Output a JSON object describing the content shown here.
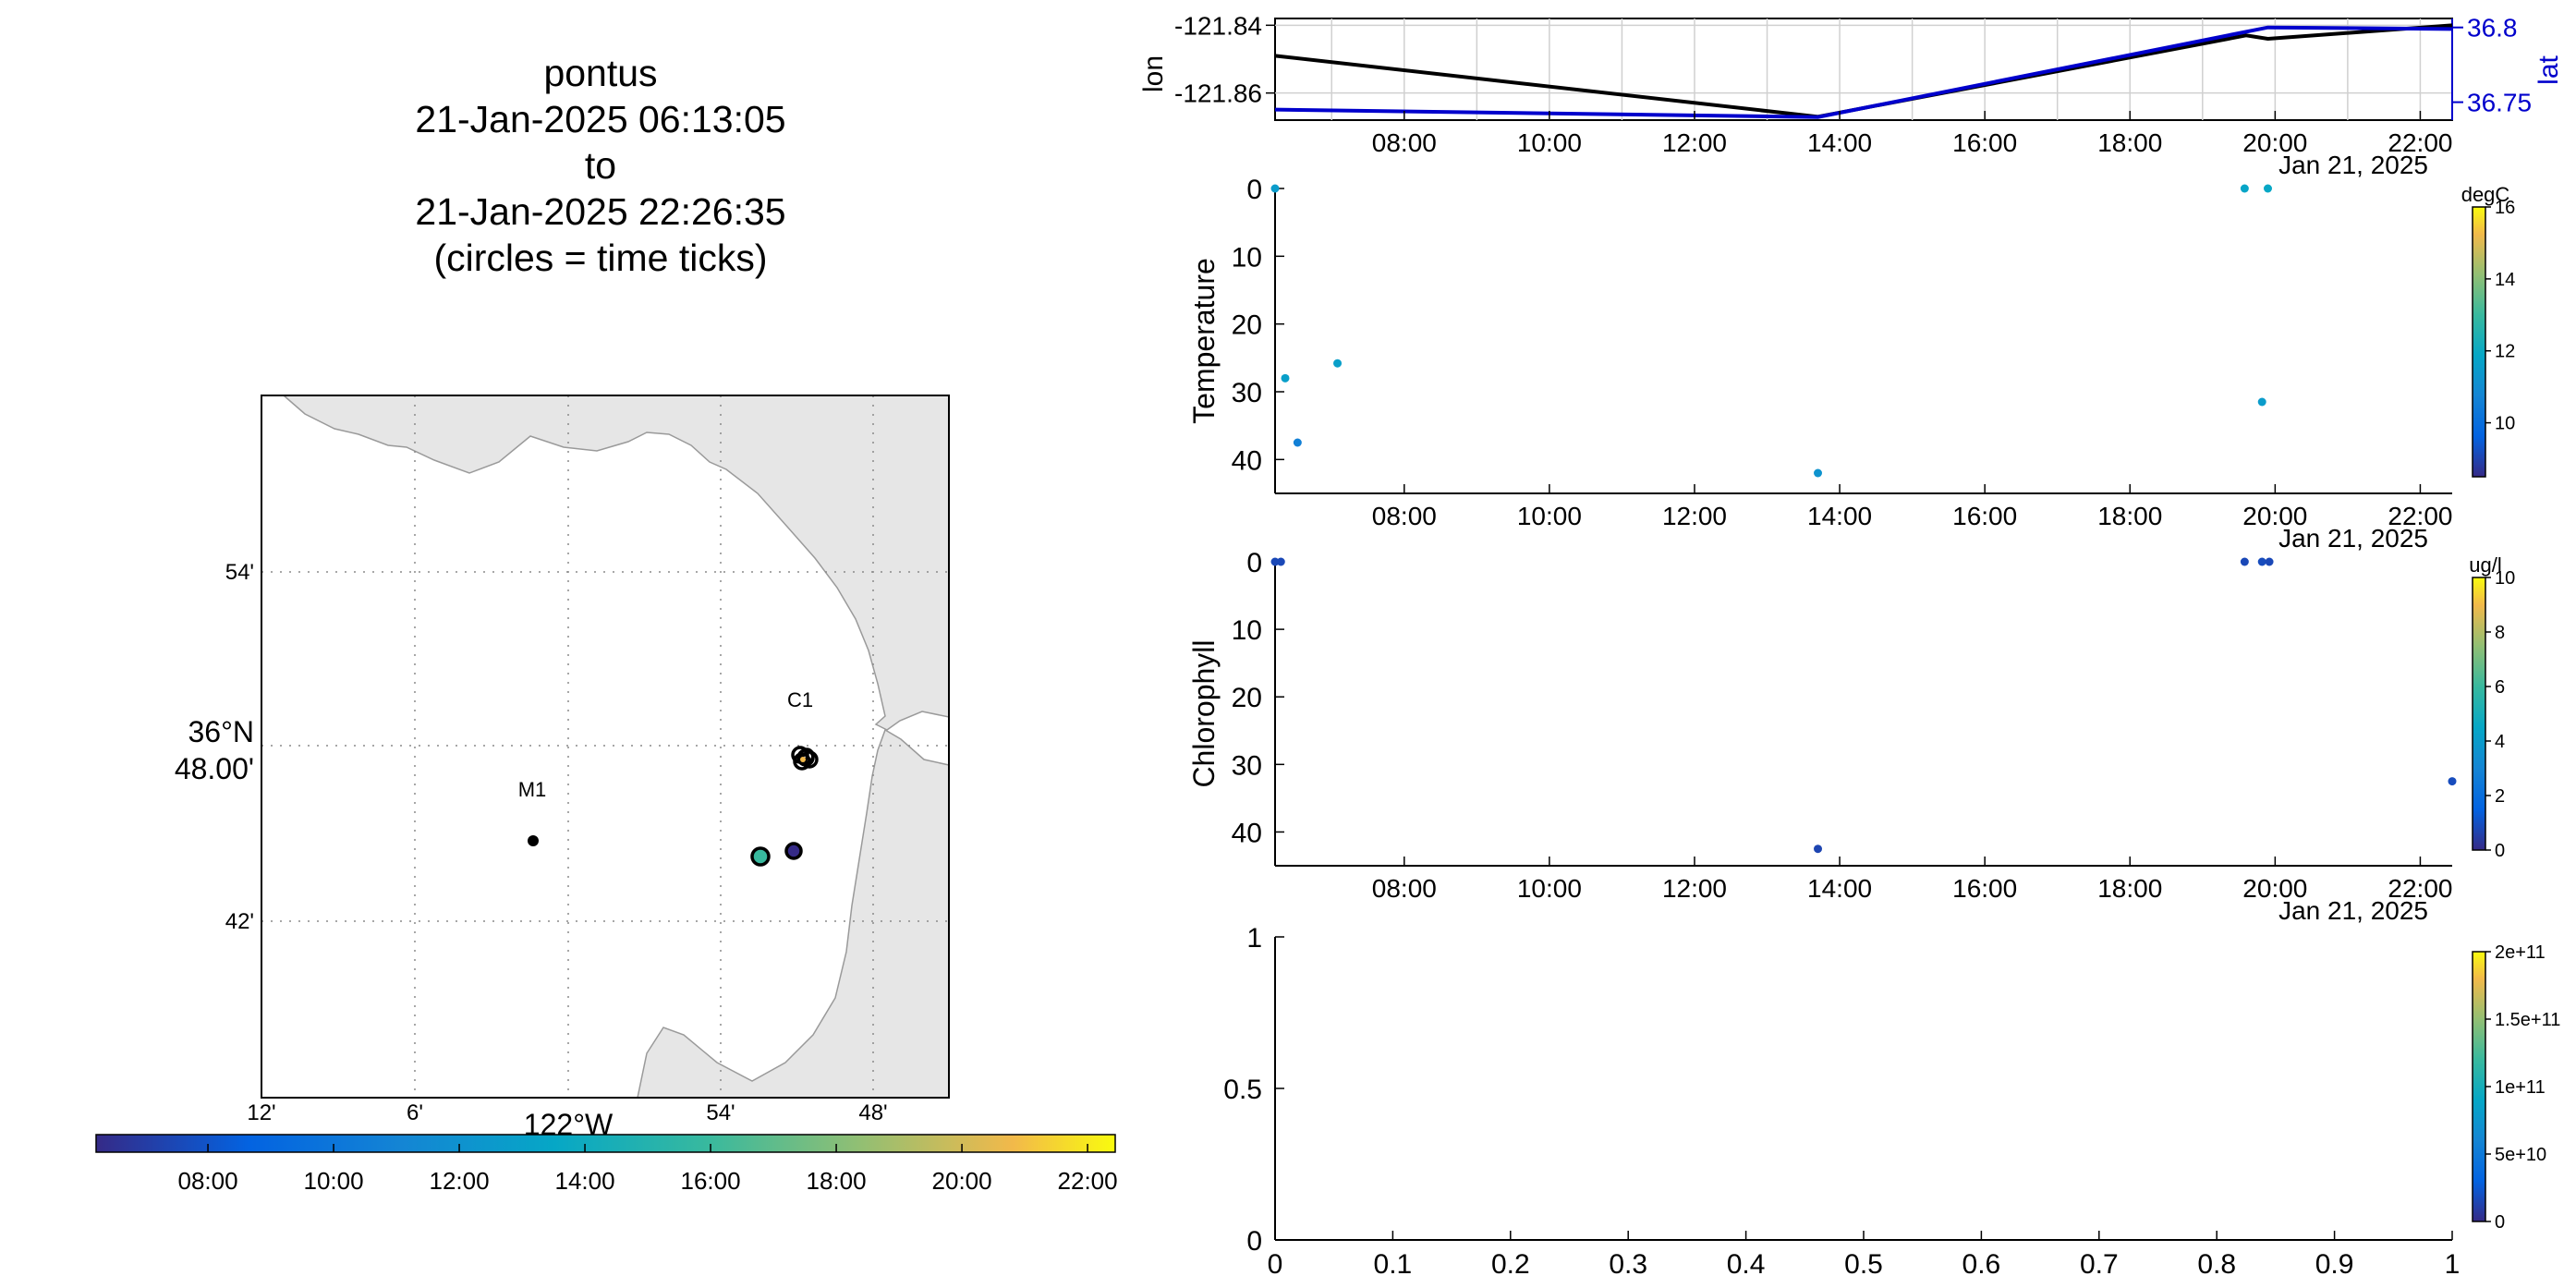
{
  "map": {
    "title_lines": [
      "pontus",
      "21-Jan-2025 06:13:05",
      "to",
      "21-Jan-2025 22:26:35",
      "(circles = time ticks)"
    ],
    "lat_ticks": [
      "54'",
      "36°N\n48.00'",
      "42'"
    ],
    "lon_ticks": [
      "12'",
      "6'",
      "122°W",
      "54'",
      "48'"
    ],
    "station_labels": [
      {
        "name": "C1"
      },
      {
        "name": "M1"
      }
    ],
    "colorbar_ticks": [
      "08:00",
      "10:00",
      "12:00",
      "14:00",
      "16:00",
      "18:00",
      "20:00",
      "22:00"
    ]
  },
  "chart_data": [
    {
      "type": "line",
      "name": "position",
      "x_ticks": [
        "08:00",
        "10:00",
        "12:00",
        "14:00",
        "16:00",
        "18:00",
        "20:00",
        "22:00"
      ],
      "x_range_hours": [
        6.22,
        22.44
      ],
      "date_label": "Jan 21, 2025",
      "grid": true,
      "series": [
        {
          "name": "lon",
          "axis": "left",
          "color": "#000000",
          "x": [
            6.22,
            13.7,
            19.6,
            19.9,
            22.44
          ],
          "y": [
            -121.849,
            -121.867,
            -121.843,
            -121.844,
            -121.84
          ]
        },
        {
          "name": "lat",
          "axis": "right",
          "color": "#0000cc",
          "x": [
            6.22,
            13.7,
            19.9,
            22.44
          ],
          "y": [
            36.745,
            36.74,
            36.8,
            36.799
          ]
        }
      ],
      "ylabel_left": "lon",
      "yticks_left": [
        "-121.84",
        "-121.86"
      ],
      "ylim_left": [
        -121.868,
        -121.838
      ],
      "ylabel_right": "lat",
      "yticks_right": [
        "36.8",
        "36.75"
      ],
      "ylim_right": [
        36.738,
        36.806
      ]
    },
    {
      "type": "scatter",
      "name": "temperature",
      "ylabel": "Temperature",
      "x_ticks": [
        "08:00",
        "10:00",
        "12:00",
        "14:00",
        "16:00",
        "18:00",
        "20:00",
        "22:00"
      ],
      "x_range_hours": [
        6.22,
        22.44
      ],
      "y_ticks": [
        "0",
        "10",
        "20",
        "30",
        "40"
      ],
      "ylim": [
        0,
        45
      ],
      "y_reversed": true,
      "date_label": "Jan 21, 2025",
      "colorbar": {
        "label": "degC",
        "ticks": [
          "10",
          "12",
          "14",
          "16"
        ],
        "range": [
          8.5,
          16
        ]
      },
      "points": [
        {
          "x": 6.22,
          "y": 0,
          "c": 11.5
        },
        {
          "x": 6.36,
          "y": 28,
          "c": 11.6
        },
        {
          "x": 6.53,
          "y": 37.5,
          "c": 10.6
        },
        {
          "x": 7.08,
          "y": 25.8,
          "c": 11.6
        },
        {
          "x": 13.7,
          "y": 42,
          "c": 11.2
        },
        {
          "x": 19.58,
          "y": 0,
          "c": 11.8
        },
        {
          "x": 19.82,
          "y": 31.5,
          "c": 11.5
        },
        {
          "x": 19.9,
          "y": 0,
          "c": 11.9
        }
      ]
    },
    {
      "type": "scatter",
      "name": "chlorophyll",
      "ylabel": "Chlorophyll",
      "x_ticks": [
        "08:00",
        "10:00",
        "12:00",
        "14:00",
        "16:00",
        "18:00",
        "20:00",
        "22:00"
      ],
      "x_range_hours": [
        6.22,
        22.44
      ],
      "y_ticks": [
        "0",
        "10",
        "20",
        "30",
        "40"
      ],
      "ylim": [
        0,
        45
      ],
      "y_reversed": true,
      "date_label": "Jan 21, 2025",
      "colorbar": {
        "label": "ug/l",
        "ticks": [
          "0",
          "2",
          "4",
          "6",
          "8",
          "10"
        ],
        "range": [
          0,
          10
        ]
      },
      "points": [
        {
          "x": 6.22,
          "y": 0,
          "c": 0.8
        },
        {
          "x": 6.3,
          "y": 0,
          "c": 0.8
        },
        {
          "x": 13.7,
          "y": 42.5,
          "c": 0.7
        },
        {
          "x": 19.58,
          "y": 0,
          "c": 0.8
        },
        {
          "x": 19.82,
          "y": 0,
          "c": 0.9
        },
        {
          "x": 19.92,
          "y": 0,
          "c": 0.8
        },
        {
          "x": 22.44,
          "y": 32.5,
          "c": 0.9
        }
      ]
    },
    {
      "type": "scatter",
      "name": "empty-plot",
      "x_ticks": [
        "0",
        "0.1",
        "0.2",
        "0.3",
        "0.4",
        "0.5",
        "0.6",
        "0.7",
        "0.8",
        "0.9",
        "1"
      ],
      "y_ticks": [
        "0",
        "0.5",
        "1"
      ],
      "xlim": [
        0,
        1
      ],
      "ylim": [
        0,
        1
      ],
      "colorbar": {
        "label": "",
        "ticks": [
          "0",
          "5e+10",
          "1e+11",
          "1.5e+11",
          "2e+11"
        ],
        "range": [
          0,
          200000000000.0
        ]
      },
      "points": []
    }
  ]
}
